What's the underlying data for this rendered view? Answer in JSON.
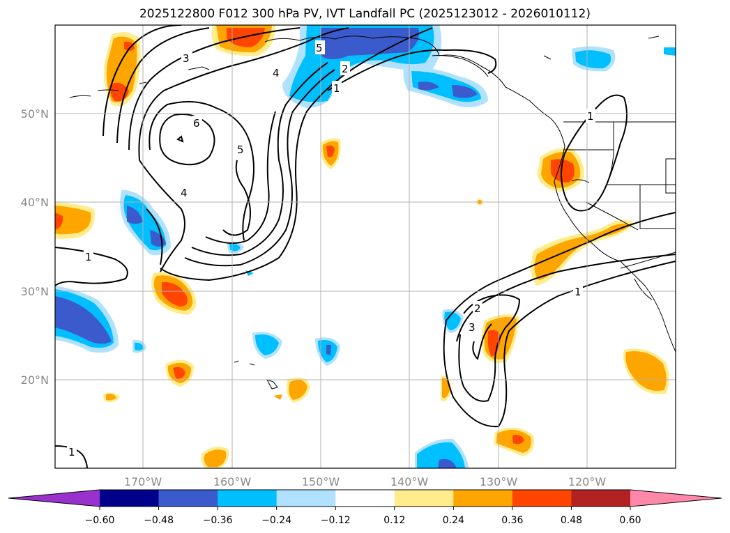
{
  "title": "2025122800 F012 300 hPa PV, IVT Landfall PC (2025123012 - 2026010112)",
  "lat_labels": [
    "50°N",
    "40°N",
    "30°N",
    "20°N"
  ],
  "lon_labels": [
    "170°W",
    "160°W",
    "150°W",
    "140°W",
    "130°W",
    "120°W"
  ],
  "colorbar": {
    "tick_labels": [
      "−0.60",
      "−0.48",
      "−0.36",
      "−0.24",
      "−0.12",
      "0.12",
      "0.24",
      "0.36",
      "0.48",
      "0.60"
    ],
    "colors": [
      "#9932cc",
      "#00008b",
      "#3b5bcc",
      "#00bfff",
      "#b0e2ff",
      "#ffffff",
      "#ffec8b",
      "#ffa500",
      "#ff4500",
      "#b22222",
      "#ff88aa",
      "#ff88aa"
    ]
  },
  "contour_labels": [
    "1",
    "2",
    "3",
    "4",
    "5",
    "6"
  ],
  "palette": {
    "orange": "#ffa500",
    "red": "#ff4500",
    "yellow": "#ffec8b",
    "lightblue": "#b0e2ff",
    "cyan": "#00bfff",
    "blue": "#3b5bcc"
  }
}
